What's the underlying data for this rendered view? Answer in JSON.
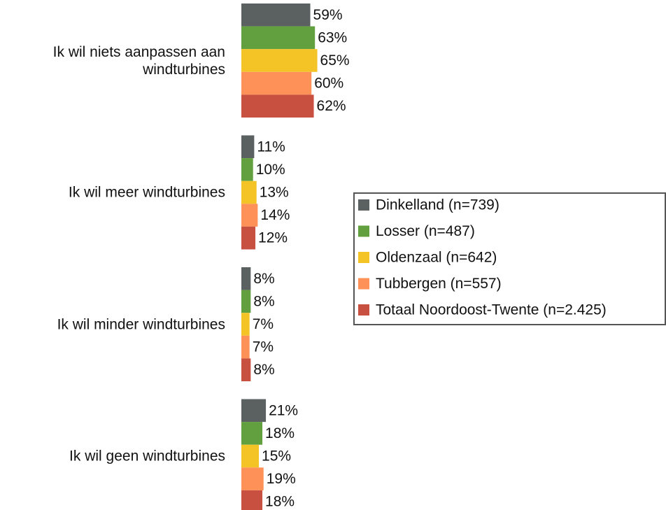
{
  "chart_data": {
    "type": "bar",
    "orientation": "horizontal",
    "categories": [
      "Ik wil niets aanpassen aan windturbines",
      "Ik wil meer windturbines",
      "Ik wil minder windturbines",
      "Ik wil geen windturbines"
    ],
    "series": [
      {
        "name": "Dinkelland (n=739)",
        "color": "#5a6160",
        "values": [
          59,
          11,
          8,
          21
        ],
        "value_labels": [
          "59%",
          "11%",
          "8%",
          "21%"
        ]
      },
      {
        "name": "Losser (n=487)",
        "color": "#62a03f",
        "values": [
          63,
          10,
          8,
          18
        ],
        "value_labels": [
          "63%",
          "10%",
          "8%",
          "18%"
        ]
      },
      {
        "name": "Oldenzaal (n=642)",
        "color": "#f4c427",
        "values": [
          65,
          13,
          7,
          15
        ],
        "value_labels": [
          "65%",
          "13%",
          "7%",
          "15%"
        ]
      },
      {
        "name": "Tubbergen (n=557)",
        "color": "#fd9157",
        "values": [
          60,
          14,
          7,
          19
        ],
        "value_labels": [
          "60%",
          "14%",
          "7%",
          "19%"
        ]
      },
      {
        "name": "Totaal Noordoost-Twente (n=2.425)",
        "color": "#c85040",
        "values": [
          62,
          12,
          8,
          18
        ],
        "value_labels": [
          "62%",
          "12%",
          "8%",
          "18%"
        ]
      }
    ],
    "legend": "right"
  }
}
